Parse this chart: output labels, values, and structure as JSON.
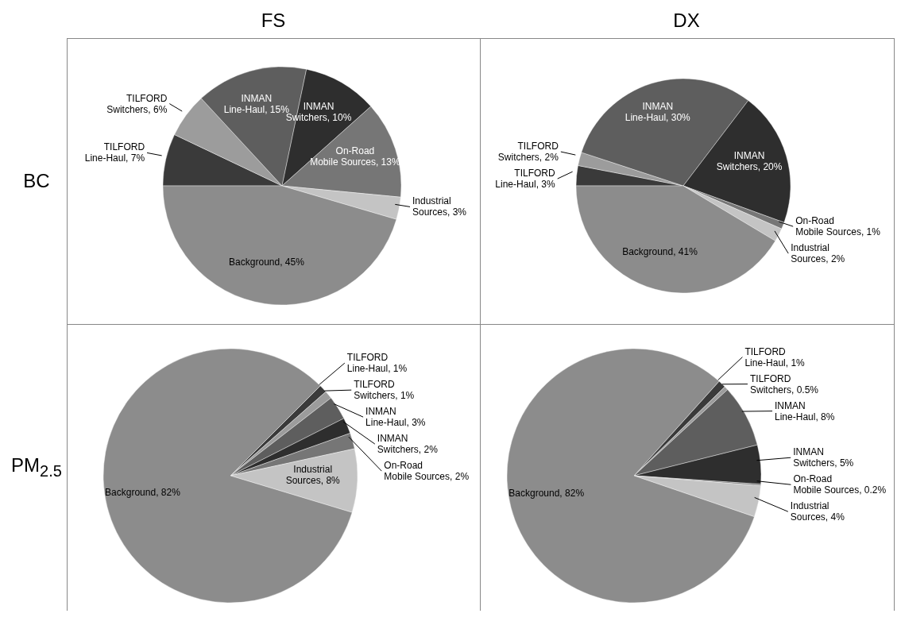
{
  "chart_data": [
    {
      "type": "pie",
      "title": "FS",
      "ylabel": "BC",
      "categories": [
        "TILFORD Line-Haul",
        "TILFORD Switchers",
        "INMAN Line-Haul",
        "INMAN Switchers",
        "On-Road Mobile Sources",
        "Industrial Sources",
        "Background"
      ],
      "values": [
        7,
        6,
        15,
        10,
        13,
        3,
        45
      ],
      "value_labels": [
        "7%",
        "6%",
        "15%",
        "10%",
        "13%",
        "3%",
        "45%"
      ],
      "colors": [
        "#3a3a3a",
        "#9c9c9c",
        "#5e5e5e",
        "#2e2e2e",
        "#767676",
        "#c4c4c4",
        "#8c8c8c"
      ]
    },
    {
      "type": "pie",
      "title": "DX",
      "categories": [
        "TILFORD Line-Haul",
        "TILFORD Switchers",
        "INMAN Line-Haul",
        "INMAN Switchers",
        "On-Road Mobile Sources",
        "Industrial Sources",
        "Background"
      ],
      "values": [
        3,
        2,
        30,
        20,
        1,
        2,
        41
      ],
      "value_labels": [
        "3%",
        "2%",
        "30%",
        "20%",
        "1%",
        "2%",
        "41%"
      ],
      "colors": [
        "#3a3a3a",
        "#9c9c9c",
        "#5e5e5e",
        "#2e2e2e",
        "#767676",
        "#c4c4c4",
        "#8c8c8c"
      ]
    },
    {
      "type": "pie",
      "ylabel": "PM$_{2.5}$",
      "categories": [
        "TILFORD Line-Haul",
        "TILFORD Switchers",
        "INMAN Line-Haul",
        "INMAN Switchers",
        "On-Road Mobile Sources",
        "Industrial Sources",
        "Background"
      ],
      "values": [
        1,
        1,
        3,
        2,
        2,
        8,
        82
      ],
      "value_labels": [
        "1%",
        "1%",
        "3%",
        "2%",
        "2%",
        "8%",
        "82%"
      ],
      "colors": [
        "#3a3a3a",
        "#9c9c9c",
        "#5e5e5e",
        "#2e2e2e",
        "#767676",
        "#c4c4c4",
        "#8c8c8c"
      ]
    },
    {
      "type": "pie",
      "categories": [
        "TILFORD Line-Haul",
        "TILFORD Switchers",
        "INMAN Line-Haul",
        "INMAN Switchers",
        "On-Road Mobile Sources",
        "Industrial Sources",
        "Background"
      ],
      "values": [
        1,
        0.5,
        8,
        5,
        0.2,
        4,
        82
      ],
      "value_labels": [
        "1%",
        "0.5%",
        "8%",
        "5%",
        "0.2%",
        "4%",
        "82%"
      ],
      "colors": [
        "#3a3a3a",
        "#9c9c9c",
        "#5e5e5e",
        "#2e2e2e",
        "#767676",
        "#c4c4c4",
        "#8c8c8c"
      ]
    }
  ]
}
